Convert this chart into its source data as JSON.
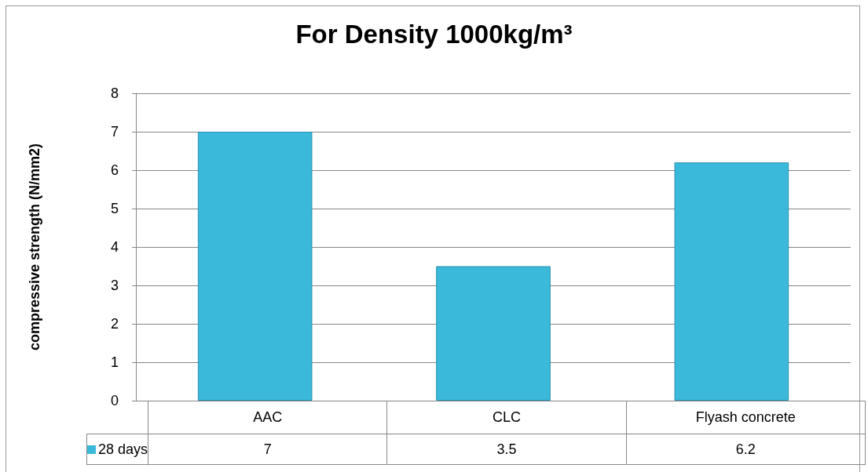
{
  "chart_data": {
    "type": "bar",
    "title": "For Density 1000kg/m³",
    "ylabel": "compressive strength (N/mm2)",
    "categories": [
      "AAC",
      "CLC",
      "Flyash concrete"
    ],
    "series": [
      {
        "name": "28 days",
        "color": "#3bb9da",
        "values": [
          7,
          3.5,
          6.2
        ]
      }
    ],
    "ylim": [
      0,
      8
    ],
    "yticks": [
      0,
      1,
      2,
      3,
      4,
      5,
      6,
      7,
      8
    ],
    "grid": "y",
    "legend": "bottom left",
    "data_labels": true
  }
}
